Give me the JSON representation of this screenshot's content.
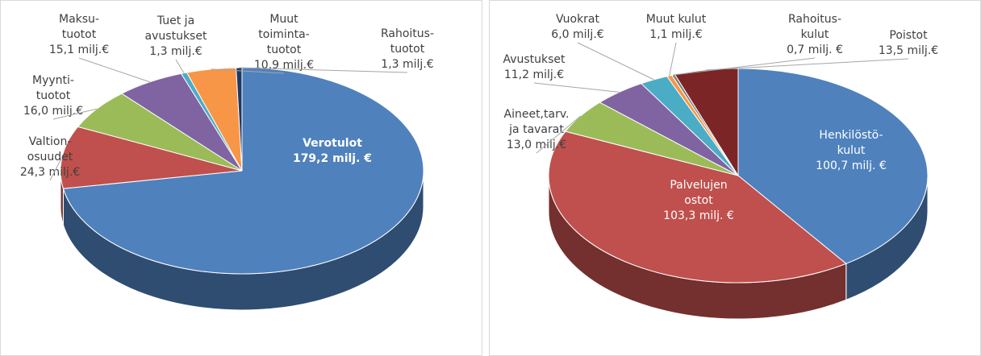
{
  "chart_data": [
    {
      "type": "pie",
      "categories": [
        "Verotulot",
        "Valtion-osuudet",
        "Myynti-tuotot",
        "Maksu-tuotot",
        "Tuet ja avustukset",
        "Muut toiminta-tuotot",
        "Rahoitus-tuotot"
      ],
      "values": [
        179.2,
        24.3,
        16.0,
        15.1,
        1.3,
        10.9,
        1.3
      ],
      "value_labels": [
        "179,2 milj. €",
        "24,3 milj.€",
        "16,0 milj.€",
        "15,1 milj.€",
        "1,3 milj.€",
        "10,9 milj.€",
        "1,3 milj.€"
      ],
      "colors": [
        "#4f81bd",
        "#c0504d",
        "#9bbb59",
        "#8064a2",
        "#4bacc6",
        "#f79646",
        "#1f3864"
      ]
    },
    {
      "type": "pie",
      "categories": [
        "Henkilöstö-kulut",
        "Palvelujen ostot",
        "Aineet,tarv. ja tavarat",
        "Avustukset",
        "Vuokrat",
        "Muut kulut",
        "Rahoitus-kulut",
        "Poistot"
      ],
      "values": [
        100.7,
        103.3,
        13.0,
        11.2,
        6.0,
        1.1,
        0.7,
        13.5
      ],
      "value_labels": [
        "100,7 milj. €",
        "103,3 milj. €",
        "13,0 milj.€",
        "11,2 milj.€",
        "6,0 milj.€",
        "1,1 milj.€",
        "0,7 milj. €",
        "13,5 milj.€"
      ],
      "colors": [
        "#4f81bd",
        "#c0504d",
        "#9bbb59",
        "#8064a2",
        "#4bacc6",
        "#f79646",
        "#7f7f7f",
        "#7b2527"
      ]
    }
  ]
}
